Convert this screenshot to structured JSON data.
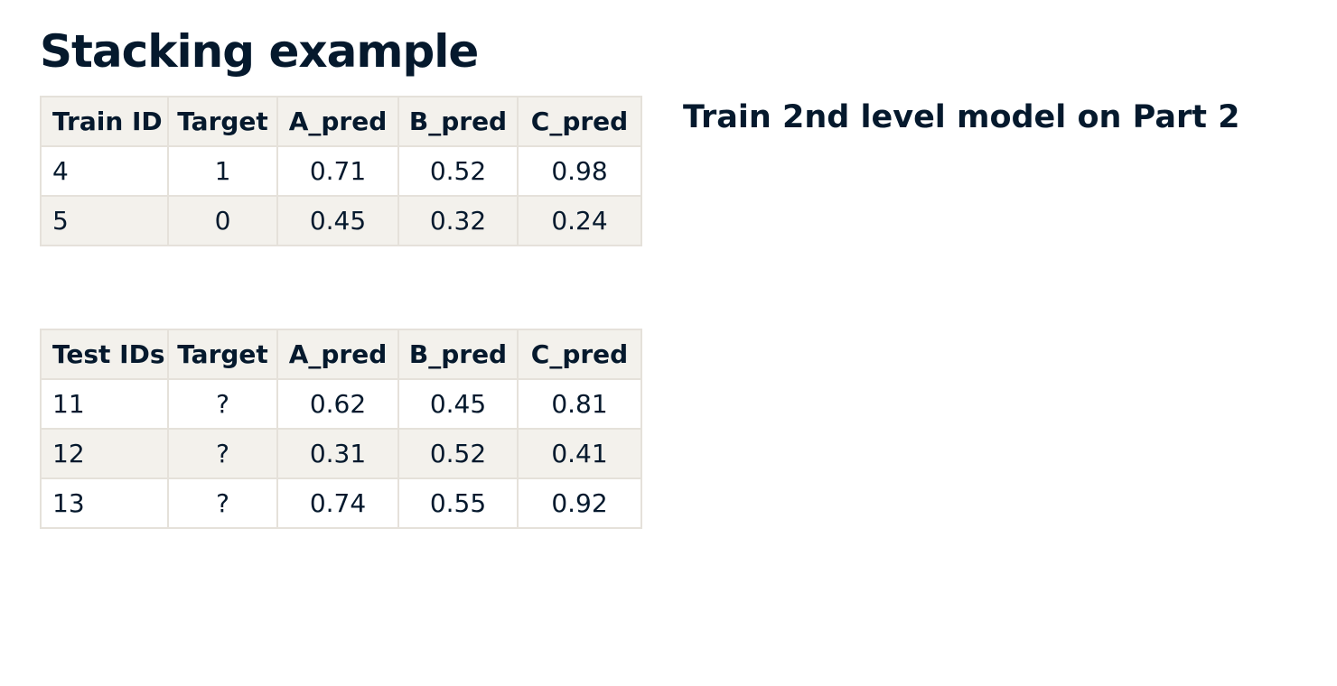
{
  "title": "Stacking example",
  "note": "Train 2nd level model on Part 2",
  "train_table": {
    "headers": [
      "Train ID",
      "Target",
      "A_pred",
      "B_pred",
      "C_pred"
    ],
    "rows": [
      [
        "4",
        "1",
        "0.71",
        "0.52",
        "0.98"
      ],
      [
        "5",
        "0",
        "0.45",
        "0.32",
        "0.24"
      ]
    ]
  },
  "test_table": {
    "headers": [
      "Test IDs",
      "Target",
      "A_pred",
      "B_pred",
      "C_pred"
    ],
    "rows": [
      [
        "11",
        "?",
        "0.62",
        "0.45",
        "0.81"
      ],
      [
        "12",
        "?",
        "0.31",
        "0.52",
        "0.41"
      ],
      [
        "13",
        "?",
        "0.74",
        "0.55",
        "0.92"
      ]
    ]
  }
}
